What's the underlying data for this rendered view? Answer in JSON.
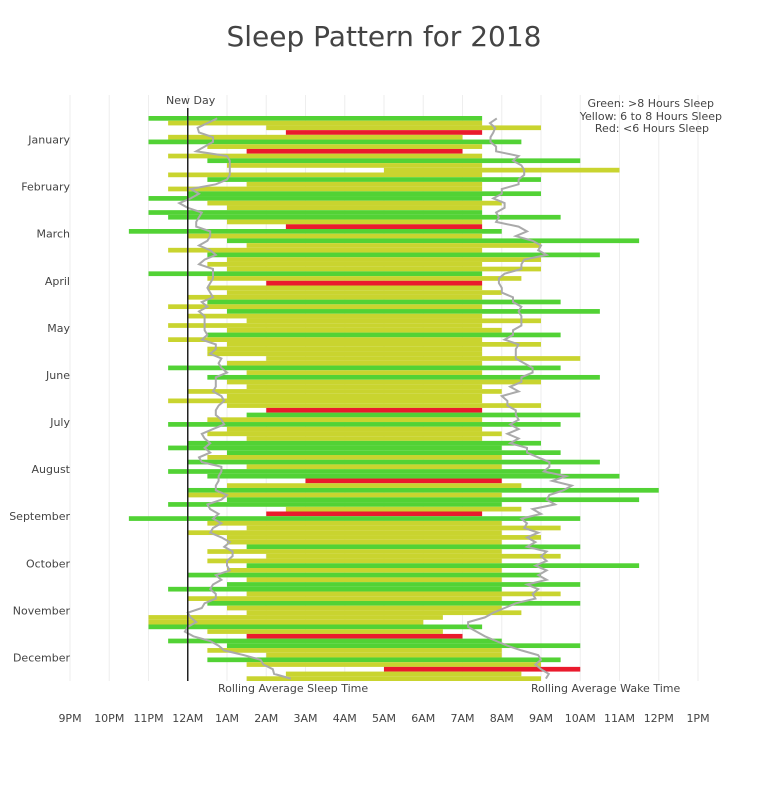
{
  "chart_data": {
    "type": "bar",
    "orientation": "horizontal-range",
    "title": "Sleep Pattern for 2018",
    "legend": [
      "Green: >8 Hours Sleep",
      "Yellow: 6 to 8 Hours Sleep",
      "Red: <6 Hours Sleep"
    ],
    "legend_placement": "top-right",
    "colors": {
      "green": "#52d235",
      "yellow": "#c9d42f",
      "red": "#ea1a2d",
      "rolling": "#aaaaaa",
      "grid": "#eeeeee"
    },
    "annotations": {
      "new_day": "New Day",
      "rolling_sleep": "Rolling Average Sleep Time",
      "rolling_wake": "Rolling Average Wake Time"
    },
    "x_unit": "hours relative to midnight (negative = previous evening)",
    "xlim": [
      -3,
      13
    ],
    "x_ticks": [
      {
        "v": -3,
        "label": "9PM"
      },
      {
        "v": -2,
        "label": "10PM"
      },
      {
        "v": -1,
        "label": "11PM"
      },
      {
        "v": 0,
        "label": "12AM"
      },
      {
        "v": 1,
        "label": "1AM"
      },
      {
        "v": 2,
        "label": "2AM"
      },
      {
        "v": 3,
        "label": "3AM"
      },
      {
        "v": 4,
        "label": "4AM"
      },
      {
        "v": 5,
        "label": "5AM"
      },
      {
        "v": 6,
        "label": "6AM"
      },
      {
        "v": 7,
        "label": "7AM"
      },
      {
        "v": 8,
        "label": "8AM"
      },
      {
        "v": 9,
        "label": "9AM"
      },
      {
        "v": 10,
        "label": "10AM"
      },
      {
        "v": 11,
        "label": "11AM"
      },
      {
        "v": 12,
        "label": "12PM"
      },
      {
        "v": 13,
        "label": "1PM"
      }
    ],
    "months": [
      {
        "name": "January",
        "sleep": [
          -1,
          -0.5,
          2,
          2.5,
          -0.5,
          -1,
          0.5,
          1.5,
          -0.5,
          0.5
        ],
        "wake": [
          7.5,
          7.5,
          9,
          7.5,
          7,
          8.5,
          7.5,
          7,
          7.5,
          10
        ]
      },
      {
        "name": "February",
        "sleep": [
          1,
          5,
          -0.5,
          0.5,
          1.5,
          -0.5,
          0,
          -1,
          0.5,
          1
        ],
        "wake": [
          7.5,
          11,
          7.5,
          9,
          7.5,
          7.5,
          9,
          7.5,
          8,
          7.5
        ]
      },
      {
        "name": "March",
        "sleep": [
          -1,
          -0.5,
          1,
          2.5,
          -1.5,
          0,
          1,
          1.5,
          -0.5,
          0.5
        ],
        "wake": [
          7.5,
          9.5,
          7.5,
          7.5,
          8,
          7.5,
          11.5,
          9,
          7.5,
          10.5
        ]
      },
      {
        "name": "April",
        "sleep": [
          1,
          0.5,
          1,
          -1,
          0.5,
          2,
          0.5,
          1,
          0,
          0.5
        ],
        "wake": [
          9,
          7.5,
          9,
          7.5,
          8.5,
          7.5,
          7.5,
          8,
          7.5,
          9.5
        ]
      },
      {
        "name": "May",
        "sleep": [
          -0.5,
          1,
          0,
          1.5,
          -0.5,
          1,
          0.5,
          -0.5,
          1,
          0.5
        ],
        "wake": [
          7.5,
          10.5,
          7.5,
          9,
          7.5,
          8,
          9.5,
          7.5,
          9,
          7.5
        ]
      },
      {
        "name": "June",
        "sleep": [
          0.5,
          2,
          1,
          -0.5,
          1.5,
          0.5,
          1,
          1.5,
          0,
          1
        ],
        "wake": [
          7.5,
          10,
          7.5,
          9.5,
          7.5,
          10.5,
          9,
          7.5,
          8,
          7.5
        ]
      },
      {
        "name": "July",
        "sleep": [
          -0.5,
          1,
          2,
          1.5,
          0.5,
          -0.5,
          1,
          0.5,
          1.5,
          0
        ],
        "wake": [
          7.5,
          9,
          7.5,
          10,
          7.5,
          9.5,
          7.5,
          8,
          7.5,
          9
        ]
      },
      {
        "name": "August",
        "sleep": [
          -0.5,
          1,
          0.5,
          0,
          1.5,
          -0.5,
          0.5,
          3,
          1,
          0
        ],
        "wake": [
          8,
          9.5,
          8,
          10.5,
          8,
          9.5,
          11,
          8,
          8.5,
          12
        ]
      },
      {
        "name": "September",
        "sleep": [
          0,
          1,
          -0.5,
          2.5,
          2,
          -1.5,
          0.5,
          1.5,
          0,
          1
        ],
        "wake": [
          8,
          11.5,
          8,
          8.5,
          7.5,
          10,
          8,
          9.5,
          8,
          9
        ]
      },
      {
        "name": "October",
        "sleep": [
          1,
          1.5,
          0.5,
          2,
          0.5,
          1.5,
          1,
          0,
          1.5,
          1
        ],
        "wake": [
          8,
          10,
          8,
          9.5,
          8,
          11.5,
          8,
          9,
          8,
          10
        ]
      },
      {
        "name": "November",
        "sleep": [
          -0.5,
          1.5,
          0,
          0.5,
          1,
          1.5,
          -1,
          -1,
          -1,
          0.5
        ],
        "wake": [
          8,
          9.5,
          8,
          10,
          8,
          8.5,
          6.5,
          6,
          7.5,
          6.5
        ]
      },
      {
        "name": "December",
        "sleep": [
          1.5,
          -0.5,
          1,
          0.5,
          2,
          0.5,
          1.5,
          5,
          2.5,
          1.5
        ],
        "wake": [
          7,
          8,
          10,
          8,
          8,
          9.5,
          9,
          10,
          8.5,
          9
        ]
      }
    ]
  }
}
